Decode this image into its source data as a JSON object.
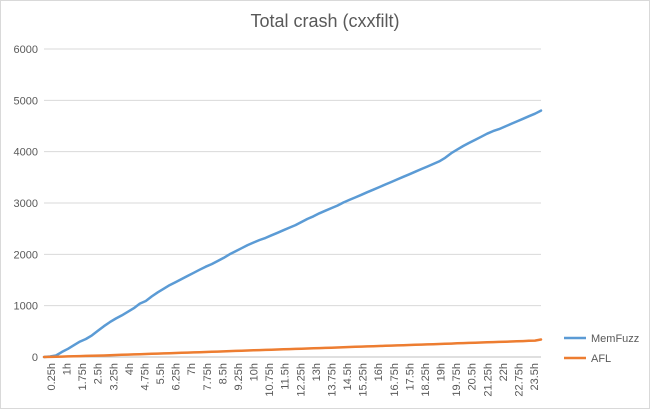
{
  "chart_data": {
    "type": "line",
    "title": "Total crash (cxxfilt)",
    "xlabel": "",
    "ylabel": "",
    "ylim": [
      0,
      6000
    ],
    "yticks": [
      0,
      1000,
      2000,
      3000,
      4000,
      5000,
      6000
    ],
    "grid": true,
    "legend_position": "right",
    "x_tick_labels": [
      "0.25h",
      "1h",
      "1.75h",
      "2.5h",
      "3.25h",
      "4h",
      "4.75h",
      "5.5h",
      "6.25h",
      "7h",
      "7.75h",
      "8.5h",
      "9.25h",
      "10h",
      "10.75h",
      "11.5h",
      "12.25h",
      "13h",
      "13.75h",
      "14.5h",
      "15.25h",
      "16h",
      "16.75h",
      "17.5h",
      "18.25h",
      "19h",
      "19.75h",
      "20.5h",
      "21.25h",
      "22h",
      "22.75h",
      "23.5h"
    ],
    "series": [
      {
        "name": "MemFuzz",
        "color": "#5b9bd5",
        "values": [
          0,
          10,
          30,
          100,
          160,
          230,
          300,
          350,
          420,
          510,
          600,
          680,
          750,
          810,
          880,
          950,
          1040,
          1090,
          1180,
          1260,
          1330,
          1400,
          1460,
          1520,
          1580,
          1640,
          1700,
          1760,
          1810,
          1870,
          1930,
          2000,
          2060,
          2120,
          2180,
          2230,
          2280,
          2320,
          2370,
          2420,
          2470,
          2520,
          2570,
          2630,
          2690,
          2740,
          2800,
          2850,
          2900,
          2950,
          3010,
          3060,
          3110,
          3160,
          3210,
          3260,
          3310,
          3360,
          3410,
          3460,
          3510,
          3560,
          3610,
          3660,
          3710,
          3760,
          3810,
          3880,
          3970,
          4040,
          4110,
          4170,
          4230,
          4290,
          4350,
          4400,
          4440,
          4490,
          4540,
          4590,
          4640,
          4690,
          4740,
          4800
        ]
      },
      {
        "name": "AFL",
        "color": "#ed7d31",
        "values": [
          0,
          2,
          5,
          8,
          12,
          15,
          18,
          21,
          24,
          27,
          30,
          34,
          38,
          42,
          46,
          50,
          54,
          58,
          62,
          66,
          70,
          74,
          78,
          82,
          86,
          90,
          94,
          98,
          102,
          106,
          110,
          114,
          118,
          122,
          126,
          130,
          134,
          138,
          142,
          146,
          150,
          154,
          158,
          162,
          166,
          170,
          174,
          178,
          182,
          186,
          190,
          194,
          198,
          202,
          206,
          210,
          214,
          218,
          222,
          226,
          230,
          234,
          238,
          242,
          246,
          250,
          254,
          258,
          262,
          266,
          270,
          274,
          278,
          282,
          286,
          290,
          294,
          298,
          302,
          306,
          310,
          315,
          320,
          340
        ]
      }
    ]
  }
}
